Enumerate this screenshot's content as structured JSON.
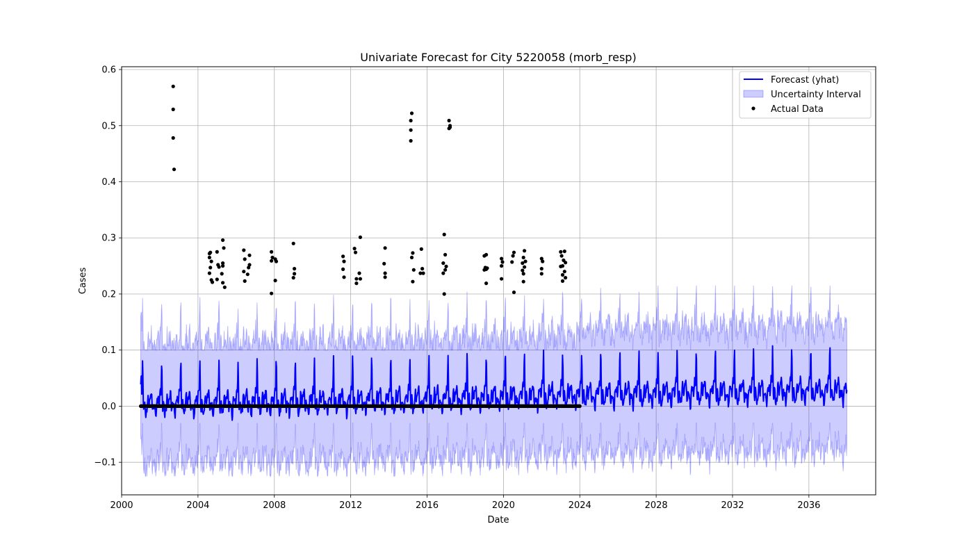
{
  "chart_data": {
    "type": "line",
    "title": "Univariate Forecast for City 5220058 (morb_resp)",
    "xlabel": "Date",
    "ylabel": "Cases",
    "xlim": [
      "2000-01-01",
      "2039-07-01"
    ],
    "ylim": [
      -0.158,
      0.605
    ],
    "xticks": [
      "2000",
      "2004",
      "2008",
      "2012",
      "2016",
      "2020",
      "2024",
      "2028",
      "2032",
      "2036"
    ],
    "yticks": [
      "−0.1",
      "0.0",
      "0.1",
      "0.2",
      "0.3",
      "0.4",
      "0.5",
      "0.6"
    ],
    "grid": true,
    "legend_position": "top-right",
    "legend": [
      {
        "label": "Forecast (yhat)",
        "kind": "line",
        "color": "#0000ff"
      },
      {
        "label": "Uncertainty Interval",
        "kind": "band",
        "color": "#0000ff"
      },
      {
        "label": "Actual Data",
        "kind": "marker",
        "color": "#000000"
      }
    ],
    "series": [
      {
        "name": "Forecast (yhat)",
        "color": "#0000ff",
        "start": "2001-01-01",
        "end": "2037-12-31",
        "frequency": "weekly",
        "trend": [
          [
            2001,
            0.004
          ],
          [
            2012,
            0.008
          ],
          [
            2024,
            0.02
          ],
          [
            2037,
            0.028
          ]
        ],
        "annual_peaks": [
          [
            2001.1,
            0.079
          ],
          [
            2002.1,
            0.079
          ],
          [
            2003.1,
            0.081
          ],
          [
            2004.1,
            0.082
          ],
          [
            2005.1,
            0.083
          ],
          [
            2006.1,
            0.082
          ],
          [
            2007.1,
            0.083
          ],
          [
            2008.1,
            0.083
          ],
          [
            2009.1,
            0.084
          ],
          [
            2010.1,
            0.085
          ],
          [
            2011.1,
            0.085
          ],
          [
            2012.1,
            0.086
          ],
          [
            2013.1,
            0.087
          ],
          [
            2014.1,
            0.088
          ],
          [
            2015.1,
            0.089
          ],
          [
            2016.1,
            0.09
          ],
          [
            2017.1,
            0.09
          ],
          [
            2018.1,
            0.091
          ],
          [
            2019.1,
            0.092
          ],
          [
            2020.1,
            0.093
          ],
          [
            2021.1,
            0.093
          ],
          [
            2022.1,
            0.094
          ],
          [
            2023.1,
            0.095
          ],
          [
            2024.1,
            0.096
          ],
          [
            2025.1,
            0.096
          ],
          [
            2026.1,
            0.097
          ],
          [
            2027.1,
            0.098
          ],
          [
            2028.1,
            0.098
          ],
          [
            2029.1,
            0.099
          ],
          [
            2030.1,
            0.1
          ],
          [
            2031.1,
            0.101
          ],
          [
            2032.1,
            0.101
          ],
          [
            2033.1,
            0.102
          ],
          [
            2034.1,
            0.102
          ],
          [
            2035.1,
            0.103
          ],
          [
            2036.1,
            0.104
          ],
          [
            2037.1,
            0.105
          ]
        ]
      },
      {
        "name": "Uncertainty Interval",
        "color": "#0000ff",
        "upper_range": [
          0.1,
          0.215
        ],
        "lower_range": [
          -0.125,
          -0.03
        ]
      },
      {
        "name": "Actual Data",
        "color": "#000000",
        "zero_baseline": {
          "start": 2001.0,
          "end": 2024.0,
          "value": 0.0
        },
        "points": [
          [
            2002.7,
            0.57
          ],
          [
            2002.7,
            0.529
          ],
          [
            2002.7,
            0.478
          ],
          [
            2002.75,
            0.422
          ],
          [
            2004.6,
            0.272
          ],
          [
            2004.65,
            0.274
          ],
          [
            2004.6,
            0.265
          ],
          [
            2004.7,
            0.258
          ],
          [
            2004.65,
            0.247
          ],
          [
            2004.6,
            0.237
          ],
          [
            2004.7,
            0.225
          ],
          [
            2004.75,
            0.221
          ],
          [
            2005.0,
            0.275
          ],
          [
            2005.05,
            0.252
          ],
          [
            2005.1,
            0.248
          ],
          [
            2005.0,
            0.226
          ],
          [
            2005.3,
            0.296
          ],
          [
            2005.35,
            0.282
          ],
          [
            2005.3,
            0.255
          ],
          [
            2005.3,
            0.25
          ],
          [
            2005.25,
            0.236
          ],
          [
            2005.3,
            0.22
          ],
          [
            2005.4,
            0.212
          ],
          [
            2006.4,
            0.278
          ],
          [
            2006.45,
            0.262
          ],
          [
            2006.4,
            0.24
          ],
          [
            2006.45,
            0.223
          ],
          [
            2006.7,
            0.269
          ],
          [
            2006.7,
            0.252
          ],
          [
            2006.65,
            0.247
          ],
          [
            2006.6,
            0.235
          ],
          [
            2007.85,
            0.275
          ],
          [
            2007.9,
            0.265
          ],
          [
            2007.85,
            0.259
          ],
          [
            2008.05,
            0.262
          ],
          [
            2008.1,
            0.258
          ],
          [
            2008.05,
            0.224
          ],
          [
            2007.85,
            0.201
          ],
          [
            2009.0,
            0.29
          ],
          [
            2009.05,
            0.245
          ],
          [
            2009.05,
            0.236
          ],
          [
            2009.0,
            0.229
          ],
          [
            2011.6,
            0.267
          ],
          [
            2011.65,
            0.258
          ],
          [
            2011.6,
            0.244
          ],
          [
            2011.65,
            0.23
          ],
          [
            2012.2,
            0.281
          ],
          [
            2012.25,
            0.274
          ],
          [
            2012.3,
            0.227
          ],
          [
            2012.3,
            0.219
          ],
          [
            2012.5,
            0.301
          ],
          [
            2012.45,
            0.237
          ],
          [
            2012.5,
            0.227
          ],
          [
            2013.8,
            0.282
          ],
          [
            2013.75,
            0.254
          ],
          [
            2013.8,
            0.237
          ],
          [
            2013.8,
            0.23
          ],
          [
            2015.15,
            0.509
          ],
          [
            2015.2,
            0.522
          ],
          [
            2015.15,
            0.492
          ],
          [
            2015.15,
            0.473
          ],
          [
            2015.25,
            0.273
          ],
          [
            2015.2,
            0.265
          ],
          [
            2015.3,
            0.243
          ],
          [
            2015.25,
            0.222
          ],
          [
            2015.7,
            0.28
          ],
          [
            2015.75,
            0.245
          ],
          [
            2015.65,
            0.237
          ],
          [
            2015.8,
            0.237
          ],
          [
            2016.9,
            0.306
          ],
          [
            2016.95,
            0.27
          ],
          [
            2016.85,
            0.255
          ],
          [
            2017.0,
            0.249
          ],
          [
            2016.95,
            0.243
          ],
          [
            2016.85,
            0.237
          ],
          [
            2016.9,
            0.2
          ],
          [
            2017.15,
            0.509
          ],
          [
            2017.2,
            0.5
          ],
          [
            2017.15,
            0.495
          ],
          [
            2017.2,
            0.497
          ],
          [
            2019.0,
            0.268
          ],
          [
            2019.1,
            0.27
          ],
          [
            2019.05,
            0.247
          ],
          [
            2019.15,
            0.246
          ],
          [
            2019.0,
            0.243
          ],
          [
            2019.1,
            0.244
          ],
          [
            2019.1,
            0.219
          ],
          [
            2019.9,
            0.263
          ],
          [
            2019.95,
            0.257
          ],
          [
            2019.9,
            0.25
          ],
          [
            2019.9,
            0.227
          ],
          [
            2020.55,
            0.274
          ],
          [
            2020.5,
            0.268
          ],
          [
            2020.45,
            0.257
          ],
          [
            2020.55,
            0.203
          ],
          [
            2021.1,
            0.277
          ],
          [
            2021.05,
            0.265
          ],
          [
            2021.15,
            0.258
          ],
          [
            2021.0,
            0.255
          ],
          [
            2021.1,
            0.248
          ],
          [
            2021.0,
            0.242
          ],
          [
            2021.05,
            0.236
          ],
          [
            2021.05,
            0.222
          ],
          [
            2022.0,
            0.263
          ],
          [
            2022.05,
            0.258
          ],
          [
            2022.0,
            0.245
          ],
          [
            2022.0,
            0.236
          ],
          [
            2023.0,
            0.275
          ],
          [
            2023.05,
            0.268
          ],
          [
            2023.2,
            0.276
          ],
          [
            2023.15,
            0.26
          ],
          [
            2023.25,
            0.256
          ],
          [
            2023.0,
            0.249
          ],
          [
            2023.1,
            0.25
          ],
          [
            2023.2,
            0.24
          ],
          [
            2023.1,
            0.234
          ],
          [
            2023.25,
            0.229
          ],
          [
            2023.1,
            0.223
          ]
        ]
      }
    ]
  }
}
